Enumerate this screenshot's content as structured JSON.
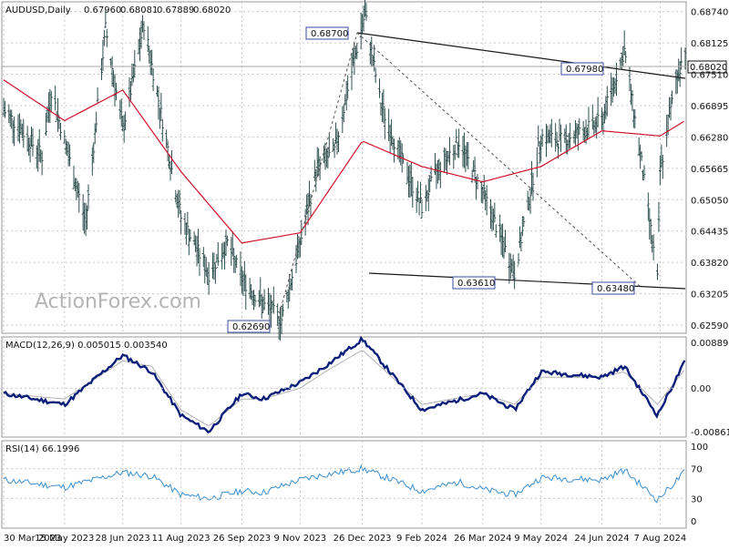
{
  "chart_data": [
    {
      "type": "ohlc",
      "title": "AUDUSD,Daily",
      "header_values": [
        "0.67960",
        "0.68081",
        "0.67889",
        "0.68020"
      ],
      "current_price": "0.68020",
      "watermark": "ActionForex.com",
      "y_ticks": [
        "0.68740",
        "0.68125",
        "0.67510",
        "0.66895",
        "0.66280",
        "0.65665",
        "0.65050",
        "0.64435",
        "0.63820",
        "0.63205",
        "0.62590"
      ],
      "x_ticks": [
        "30 Mar 2023",
        "15 May 2023",
        "28 Jun 2023",
        "11 Aug 2023",
        "26 Sep 2023",
        "9 Nov 2023",
        "26 Dec 2023",
        "9 Feb 2024",
        "26 Mar 2024",
        "9 May 2024",
        "24 Jun 2024",
        "7 Aug 2024"
      ],
      "ylim": [
        0.6243,
        0.6893
      ],
      "annotations": [
        "0.68700",
        "0.67980",
        "0.63610",
        "0.63480",
        "0.62690"
      ],
      "price_path": [
        [
          "30 Mar 2023",
          0.668
        ],
        [
          "10 Apr 2023",
          0.665
        ],
        [
          "28 Apr 2023",
          0.659
        ],
        [
          "5 May 2023",
          0.672
        ],
        [
          "15 May 2023",
          0.662
        ],
        [
          "31 May 2023",
          0.646
        ],
        [
          "15 Jun 2023",
          0.684
        ],
        [
          "28 Jun 2023",
          0.664
        ],
        [
          "14 Jul 2023",
          0.685
        ],
        [
          "28 Jul 2023",
          0.666
        ],
        [
          "11 Aug 2023",
          0.647
        ],
        [
          "1 Sep 2023",
          0.636
        ],
        [
          "15 Sep 2023",
          0.642
        ],
        [
          "26 Sep 2023",
          0.635
        ],
        [
          "12 Oct 2023",
          0.63
        ],
        [
          "26 Oct 2023",
          0.627
        ],
        [
          "9 Nov 2023",
          0.642
        ],
        [
          "22 Nov 2023",
          0.657
        ],
        [
          "5 Dec 2023",
          0.66
        ],
        [
          "20 Dec 2023",
          0.678
        ],
        [
          "28 Dec 2023",
          0.687
        ],
        [
          "9 Jan 2024",
          0.669
        ],
        [
          "25 Jan 2024",
          0.658
        ],
        [
          "9 Feb 2024",
          0.649
        ],
        [
          "20 Feb 2024",
          0.656
        ],
        [
          "8 Mar 2024",
          0.662
        ],
        [
          "26 Mar 2024",
          0.652
        ],
        [
          "19 Apr 2024",
          0.6361
        ],
        [
          "9 May 2024",
          0.663
        ],
        [
          "24 May 2024",
          0.662
        ],
        [
          "10 Jun 2024",
          0.664
        ],
        [
          "24 Jun 2024",
          0.666
        ],
        [
          "11 Jul 2024",
          0.6798
        ],
        [
          "25 Jul 2024",
          0.656
        ],
        [
          "5 Aug 2024",
          0.6348
        ],
        [
          "7 Aug 2024",
          0.656
        ],
        [
          "19 Aug 2024",
          0.674
        ],
        [
          "26 Aug 2024",
          0.6802
        ]
      ],
      "moving_average": [
        [
          "30 Mar 2023",
          0.674
        ],
        [
          "15 May 2023",
          0.666
        ],
        [
          "28 Jun 2023",
          0.672
        ],
        [
          "11 Aug 2023",
          0.656
        ],
        [
          "26 Sep 2023",
          0.642
        ],
        [
          "9 Nov 2023",
          0.644
        ],
        [
          "26 Dec 2023",
          0.662
        ],
        [
          "9 Feb 2024",
          0.657
        ],
        [
          "26 Mar 2024",
          0.654
        ],
        [
          "9 May 2024",
          0.657
        ],
        [
          "24 Jun 2024",
          0.664
        ],
        [
          "7 Aug 2024",
          0.663
        ],
        [
          "26 Aug 2024",
          0.666
        ]
      ]
    },
    {
      "type": "line",
      "title": "MACD(12,26,9) 0.005015 0.003540",
      "y_ticks": [
        "0.008896",
        "0.00",
        "-0.008612"
      ],
      "ylim": [
        -0.009,
        0.0094
      ],
      "series": [
        {
          "name": "MACD",
          "points": [
            [
              "30 Mar 2023",
              -0.001
            ],
            [
              "15 May 2023",
              -0.003
            ],
            [
              "28 Jun 2023",
              0.006
            ],
            [
              "20 Jul 2023",
              0.003
            ],
            [
              "11 Aug 2023",
              -0.005
            ],
            [
              "1 Sep 2023",
              -0.008
            ],
            [
              "26 Sep 2023",
              -0.001
            ],
            [
              "12 Oct 2023",
              -0.002
            ],
            [
              "9 Nov 2023",
              0.001
            ],
            [
              "28 Nov 2023",
              0.004
            ],
            [
              "26 Dec 2023",
              0.009
            ],
            [
              "9 Feb 2024",
              -0.004
            ],
            [
              "26 Mar 2024",
              -0.001
            ],
            [
              "19 Apr 2024",
              -0.004
            ],
            [
              "9 May 2024",
              0.003
            ],
            [
              "24 Jun 2024",
              0.002
            ],
            [
              "11 Jul 2024",
              0.004
            ],
            [
              "5 Aug 2024",
              -0.005
            ],
            [
              "26 Aug 2024",
              0.005
            ]
          ]
        },
        {
          "name": "Signal",
          "points": [
            [
              "30 Mar 2023",
              -0.001
            ],
            [
              "15 May 2023",
              -0.002
            ],
            [
              "28 Jun 2023",
              0.005
            ],
            [
              "20 Jul 2023",
              0.004
            ],
            [
              "11 Aug 2023",
              -0.004
            ],
            [
              "1 Sep 2023",
              -0.007
            ],
            [
              "26 Sep 2023",
              -0.002
            ],
            [
              "12 Oct 2023",
              -0.002
            ],
            [
              "9 Nov 2023",
              0.0
            ],
            [
              "28 Nov 2023",
              0.003
            ],
            [
              "26 Dec 2023",
              0.007
            ],
            [
              "9 Feb 2024",
              -0.003
            ],
            [
              "26 Mar 2024",
              -0.001
            ],
            [
              "19 Apr 2024",
              -0.003
            ],
            [
              "9 May 2024",
              0.002
            ],
            [
              "24 Jun 2024",
              0.002
            ],
            [
              "11 Jul 2024",
              0.003
            ],
            [
              "5 Aug 2024",
              -0.003
            ],
            [
              "26 Aug 2024",
              0.0035
            ]
          ]
        }
      ]
    },
    {
      "type": "line",
      "title": "RSI(14) 66.1996",
      "y_ticks": [
        "100",
        "70",
        "30",
        "0"
      ],
      "ylim": [
        0,
        100
      ],
      "series": [
        {
          "name": "RSI",
          "points": [
            [
              "30 Mar 2023",
              55
            ],
            [
              "15 May 2023",
              45
            ],
            [
              "28 Jun 2023",
              65
            ],
            [
              "20 Jul 2023",
              60
            ],
            [
              "11 Aug 2023",
              35
            ],
            [
              "1 Sep 2023",
              30
            ],
            [
              "26 Sep 2023",
              40
            ],
            [
              "12 Oct 2023",
              38
            ],
            [
              "9 Nov 2023",
              55
            ],
            [
              "28 Nov 2023",
              62
            ],
            [
              "26 Dec 2023",
              70
            ],
            [
              "9 Feb 2024",
              40
            ],
            [
              "8 Mar 2024",
              52
            ],
            [
              "26 Mar 2024",
              42
            ],
            [
              "19 Apr 2024",
              35
            ],
            [
              "9 May 2024",
              58
            ],
            [
              "24 Jun 2024",
              55
            ],
            [
              "11 Jul 2024",
              68
            ],
            [
              "5 Aug 2024",
              28
            ],
            [
              "26 Aug 2024",
              66
            ]
          ]
        }
      ]
    }
  ]
}
